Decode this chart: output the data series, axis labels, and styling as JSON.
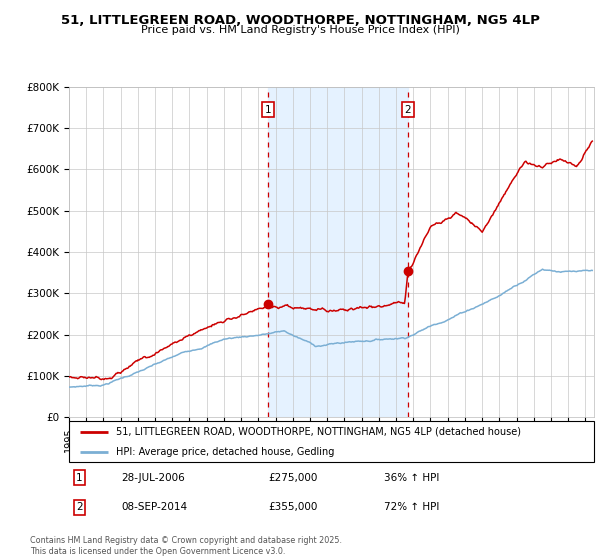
{
  "title": "51, LITTLEGREEN ROAD, WOODTHORPE, NOTTINGHAM, NG5 4LP",
  "subtitle": "Price paid vs. HM Land Registry's House Price Index (HPI)",
  "legend_line1": "51, LITTLEGREEN ROAD, WOODTHORPE, NOTTINGHAM, NG5 4LP (detached house)",
  "legend_line2": "HPI: Average price, detached house, Gedling",
  "marker1_date": "28-JUL-2006",
  "marker1_price": 275000,
  "marker1_hpi": "36% ↑ HPI",
  "marker2_date": "08-SEP-2014",
  "marker2_price": 355000,
  "marker2_hpi": "72% ↑ HPI",
  "footer": "Contains HM Land Registry data © Crown copyright and database right 2025.\nThis data is licensed under the Open Government Licence v3.0.",
  "red_color": "#cc0000",
  "blue_color": "#7bafd4",
  "bg_shaded": "#ddeeff",
  "marker1_x": 2006.57,
  "marker2_x": 2014.69,
  "ylim_max": 800000,
  "xlim_start": 1995,
  "xlim_end": 2025.5,
  "yticks": [
    0,
    100000,
    200000,
    300000,
    400000,
    500000,
    600000,
    700000,
    800000
  ],
  "ylabels": [
    "£0",
    "£100K",
    "£200K",
    "£300K",
    "£400K",
    "£500K",
    "£600K",
    "£700K",
    "£800K"
  ]
}
